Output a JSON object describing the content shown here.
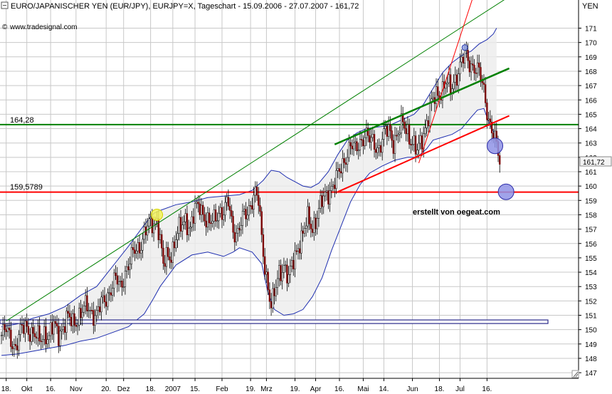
{
  "header": {
    "title": "EURO/JAPANISCHER YEN (EUR/JPY), EURJPY=X, Tageschart - 15.09.2006 - 27.07.2007 - 161,72",
    "brand": "www.tradesignal.com",
    "author_note": "erstellt von oegeat.com",
    "unit": "YEN"
  },
  "chart_data": {
    "type": "line",
    "title": "EURO/JAPANISCHER YEN (EUR/JPY), EURJPY=X, Tageschart - 15.09.2006 - 27.07.2007 - 161,72",
    "ylabel": "YEN",
    "ylim": [
      146.8,
      172.3
    ],
    "yticks": [
      147,
      148,
      149,
      150,
      151,
      152,
      153,
      154,
      155,
      156,
      157,
      158,
      159,
      160,
      161,
      162,
      163,
      164,
      165,
      166,
      167,
      168,
      169,
      170,
      171
    ],
    "xticks": [
      {
        "label": "18.",
        "day": 3
      },
      {
        "label": "Okt",
        "day": 16
      },
      {
        "label": "16.",
        "day": 31
      },
      {
        "label": "Nov",
        "day": 47
      },
      {
        "label": "20.",
        "day": 66
      },
      {
        "label": "Dez",
        "day": 77
      },
      {
        "label": "18.",
        "day": 94
      },
      {
        "label": "2007",
        "day": 108
      },
      {
        "label": "15.",
        "day": 122
      },
      {
        "label": "Feb",
        "day": 139
      },
      {
        "label": "19.",
        "day": 157
      },
      {
        "label": "Mrz",
        "day": 167
      },
      {
        "label": "19.",
        "day": 185
      },
      {
        "label": "Apr",
        "day": 198
      },
      {
        "label": "16.",
        "day": 213
      },
      {
        "label": "Mai",
        "day": 228
      },
      {
        "label": "14.",
        "day": 241
      },
      {
        "label": "Jun",
        "day": 259
      },
      {
        "label": "18.",
        "day": 276
      },
      {
        "label": "Jul",
        "day": 289
      },
      {
        "label": "16.",
        "day": 306
      }
    ],
    "last_price": "161,72",
    "horizontal_levels": [
      {
        "label": "164,28",
        "value": 164.28,
        "color": "#008000"
      },
      {
        "label": "159,5789",
        "value": 159.58,
        "color": "#ff0000"
      },
      {
        "label": "",
        "value": 150.55,
        "color": "#2a2a8a"
      }
    ],
    "closes": [
      [
        0,
        149.6
      ],
      [
        3,
        149.9
      ],
      [
        6,
        149.4
      ],
      [
        9,
        148.8
      ],
      [
        12,
        149.7
      ],
      [
        15,
        150.3
      ],
      [
        18,
        150.0
      ],
      [
        21,
        149.5
      ],
      [
        24,
        149.2
      ],
      [
        27,
        149.9
      ],
      [
        30,
        149.5
      ],
      [
        33,
        150.2
      ],
      [
        36,
        149.8
      ],
      [
        39,
        150.3
      ],
      [
        42,
        150.7
      ],
      [
        45,
        150.5
      ],
      [
        48,
        150.9
      ],
      [
        51,
        151.2
      ],
      [
        54,
        151.6
      ],
      [
        57,
        151.3
      ],
      [
        60,
        151.0
      ],
      [
        63,
        151.7
      ],
      [
        66,
        152.3
      ],
      [
        69,
        152.9
      ],
      [
        72,
        153.4
      ],
      [
        75,
        153.0
      ],
      [
        78,
        154.1
      ],
      [
        81,
        154.6
      ],
      [
        84,
        155.5
      ],
      [
        87,
        155.9
      ],
      [
        90,
        156.6
      ],
      [
        93,
        157.2
      ],
      [
        96,
        157.5
      ],
      [
        98,
        157.9
      ],
      [
        100,
        156.2
      ],
      [
        102,
        154.3
      ],
      [
        104,
        155.0
      ],
      [
        107,
        155.4
      ],
      [
        110,
        156.4
      ],
      [
        113,
        157.0
      ],
      [
        116,
        157.8
      ],
      [
        119,
        157.1
      ],
      [
        122,
        158.2
      ],
      [
        125,
        158.7
      ],
      [
        128,
        158.0
      ],
      [
        131,
        157.2
      ],
      [
        134,
        157.6
      ],
      [
        137,
        158.4
      ],
      [
        140,
        158.1
      ],
      [
        143,
        158.8
      ],
      [
        146,
        157.0
      ],
      [
        149,
        156.8
      ],
      [
        152,
        157.6
      ],
      [
        155,
        158.2
      ],
      [
        158,
        159.2
      ],
      [
        160,
        159.5
      ],
      [
        162,
        158.8
      ],
      [
        164,
        156.3
      ],
      [
        166,
        154.5
      ],
      [
        168,
        153.1
      ],
      [
        170,
        151.6
      ],
      [
        172,
        152.3
      ],
      [
        175,
        154.0
      ],
      [
        178,
        154.6
      ],
      [
        181,
        153.4
      ],
      [
        184,
        154.8
      ],
      [
        187,
        156.0
      ],
      [
        190,
        156.6
      ],
      [
        193,
        157.6
      ],
      [
        196,
        157.2
      ],
      [
        199,
        158.0
      ],
      [
        202,
        158.8
      ],
      [
        205,
        159.5
      ],
      [
        208,
        160.0
      ],
      [
        211,
        160.4
      ],
      [
        214,
        161.2
      ],
      [
        217,
        162.2
      ],
      [
        220,
        162.8
      ],
      [
        223,
        162.4
      ],
      [
        226,
        163.2
      ],
      [
        229,
        163.6
      ],
      [
        232,
        163.1
      ],
      [
        235,
        163.0
      ],
      [
        238,
        162.7
      ],
      [
        241,
        163.4
      ],
      [
        244,
        164.0
      ],
      [
        247,
        163.2
      ],
      [
        250,
        163.6
      ],
      [
        253,
        164.3
      ],
      [
        256,
        163.9
      ],
      [
        259,
        163.0
      ],
      [
        262,
        162.2
      ],
      [
        265,
        163.4
      ],
      [
        268,
        164.6
      ],
      [
        271,
        165.6
      ],
      [
        274,
        166.3
      ],
      [
        277,
        166.7
      ],
      [
        280,
        167.2
      ],
      [
        283,
        166.6
      ],
      [
        286,
        167.6
      ],
      [
        289,
        168.4
      ],
      [
        292,
        169.0
      ],
      [
        295,
        168.6
      ],
      [
        298,
        168.4
      ],
      [
        301,
        167.8
      ],
      [
        304,
        166.6
      ],
      [
        307,
        164.8
      ],
      [
        310,
        163.5
      ],
      [
        313,
        162.2
      ],
      [
        314,
        161.72
      ]
    ],
    "bollinger_upper": [
      [
        0,
        150.2
      ],
      [
        10,
        150.4
      ],
      [
        20,
        150.8
      ],
      [
        30,
        151.1
      ],
      [
        40,
        151.6
      ],
      [
        50,
        152.4
      ],
      [
        60,
        153.0
      ],
      [
        70,
        154.4
      ],
      [
        80,
        155.8
      ],
      [
        90,
        157.3
      ],
      [
        96,
        158.1
      ],
      [
        100,
        158.3
      ],
      [
        110,
        158.7
      ],
      [
        120,
        158.9
      ],
      [
        130,
        159.2
      ],
      [
        140,
        159.3
      ],
      [
        150,
        159.4
      ],
      [
        158,
        159.7
      ],
      [
        165,
        160.4
      ],
      [
        170,
        161.1
      ],
      [
        175,
        161.0
      ],
      [
        180,
        160.6
      ],
      [
        185,
        160.3
      ],
      [
        190,
        160.0
      ],
      [
        195,
        159.9
      ],
      [
        200,
        160.2
      ],
      [
        206,
        161.0
      ],
      [
        212,
        162.2
      ],
      [
        218,
        163.2
      ],
      [
        224,
        163.7
      ],
      [
        230,
        164.0
      ],
      [
        236,
        164.1
      ],
      [
        244,
        164.2
      ],
      [
        252,
        164.6
      ],
      [
        260,
        165.0
      ],
      [
        266,
        165.7
      ],
      [
        272,
        166.8
      ],
      [
        278,
        167.9
      ],
      [
        284,
        168.6
      ],
      [
        290,
        169.1
      ],
      [
        296,
        169.4
      ],
      [
        301,
        169.9
      ],
      [
        306,
        170.2
      ],
      [
        310,
        170.6
      ],
      [
        312,
        171.0
      ]
    ],
    "bollinger_lower": [
      [
        0,
        148.2
      ],
      [
        10,
        148.3
      ],
      [
        20,
        148.5
      ],
      [
        30,
        148.7
      ],
      [
        40,
        148.9
      ],
      [
        50,
        149.2
      ],
      [
        60,
        149.4
      ],
      [
        70,
        149.8
      ],
      [
        80,
        150.2
      ],
      [
        90,
        151.1
      ],
      [
        96,
        152.2
      ],
      [
        100,
        153.0
      ],
      [
        110,
        154.5
      ],
      [
        120,
        155.2
      ],
      [
        130,
        155.4
      ],
      [
        140,
        155.1
      ],
      [
        146,
        155.4
      ],
      [
        150,
        155.7
      ],
      [
        158,
        155.4
      ],
      [
        164,
        154.6
      ],
      [
        168,
        152.6
      ],
      [
        172,
        151.4
      ],
      [
        178,
        151.0
      ],
      [
        184,
        151.1
      ],
      [
        190,
        151.4
      ],
      [
        196,
        152.3
      ],
      [
        202,
        153.6
      ],
      [
        208,
        155.5
      ],
      [
        214,
        157.2
      ],
      [
        220,
        158.9
      ],
      [
        226,
        160.1
      ],
      [
        232,
        160.9
      ],
      [
        240,
        161.4
      ],
      [
        248,
        161.8
      ],
      [
        256,
        162.0
      ],
      [
        262,
        162.0
      ],
      [
        268,
        162.6
      ],
      [
        272,
        163.2
      ],
      [
        278,
        163.4
      ],
      [
        284,
        163.6
      ],
      [
        290,
        164.0
      ],
      [
        296,
        164.8
      ],
      [
        300,
        165.3
      ],
      [
        304,
        165.4
      ],
      [
        308,
        164.2
      ],
      [
        312,
        163.5
      ]
    ],
    "trendlines": [
      {
        "name": "upper-channel",
        "x": [
          3,
          320
        ],
        "y": [
          150.6,
          173.2
        ],
        "color": "#008000",
        "width": 1
      },
      {
        "name": "short-channel",
        "x": [
          210,
          320
        ],
        "y": [
          162.9,
          168.2
        ],
        "color": "#008000",
        "width": 2.5
      },
      {
        "name": "support",
        "x": [
          212,
          320
        ],
        "y": [
          159.6,
          164.9
        ],
        "color": "#ff0000",
        "width": 2
      },
      {
        "name": "steep-support",
        "x": [
          263,
          310
        ],
        "y": [
          161.6,
          177.5
        ],
        "color": "#ff0000",
        "width": 1
      }
    ],
    "markers": [
      {
        "day": 98,
        "value": 158.0,
        "r": 8,
        "color": "#f2f25a",
        "stroke": "#d4d400"
      },
      {
        "day": 292,
        "value": 169.65,
        "r": 4,
        "color": "#8fa0e0",
        "stroke": "#3040b0"
      },
      {
        "day": 311,
        "value": 162.8,
        "r": 11,
        "color": "#8f93e6",
        "stroke": "#2a2aa8"
      },
      {
        "day": 318,
        "value": 159.6,
        "r": 11,
        "color": "#8f93e6",
        "stroke": "#2a2aa8"
      }
    ]
  }
}
